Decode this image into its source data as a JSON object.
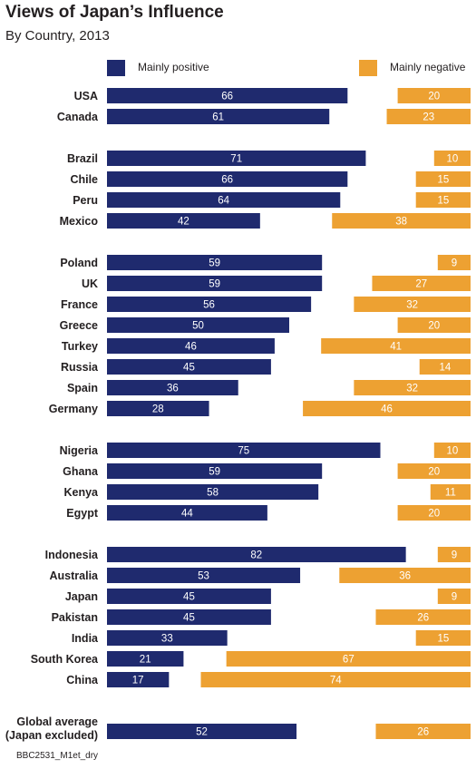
{
  "title": "Views of Japan’s Influence",
  "subtitle": "By Country, 2013",
  "legend": {
    "positive_label": "Mainly positive",
    "negative_label": "Mainly negative"
  },
  "colors": {
    "positive": "#1f2a6e",
    "negative": "#eda132",
    "text_on_bar": "#ffffff"
  },
  "footer": "BBC2531_M1et_dry",
  "chart_data": {
    "type": "bar",
    "title": "Views of Japan’s Influence",
    "subtitle": "By Country, 2013",
    "orientation": "horizontal",
    "categories": [
      "USA",
      "Canada",
      "Brazil",
      "Chile",
      "Peru",
      "Mexico",
      "Poland",
      "UK",
      "France",
      "Greece",
      "Turkey",
      "Russia",
      "Spain",
      "Germany",
      "Nigeria",
      "Ghana",
      "Kenya",
      "Egypt",
      "Indonesia",
      "Australia",
      "Japan",
      "Pakistan",
      "India",
      "South Korea",
      "China",
      "Global average (Japan excluded)"
    ],
    "category_lines": [
      [
        "USA"
      ],
      [
        "Canada"
      ],
      [
        "Brazil"
      ],
      [
        "Chile"
      ],
      [
        "Peru"
      ],
      [
        "Mexico"
      ],
      [
        "Poland"
      ],
      [
        "UK"
      ],
      [
        "France"
      ],
      [
        "Greece"
      ],
      [
        "Turkey"
      ],
      [
        "Russia"
      ],
      [
        "Spain"
      ],
      [
        "Germany"
      ],
      [
        "Nigeria"
      ],
      [
        "Ghana"
      ],
      [
        "Kenya"
      ],
      [
        "Egypt"
      ],
      [
        "Indonesia"
      ],
      [
        "Australia"
      ],
      [
        "Japan"
      ],
      [
        "Pakistan"
      ],
      [
        "India"
      ],
      [
        "South Korea"
      ],
      [
        "China"
      ],
      [
        "Global average",
        "(Japan excluded)"
      ]
    ],
    "groups": [
      [
        0,
        1
      ],
      [
        2,
        3,
        4,
        5
      ],
      [
        6,
        7,
        8,
        9,
        10,
        11,
        12,
        13
      ],
      [
        14,
        15,
        16,
        17
      ],
      [
        18,
        19,
        20,
        21,
        22,
        23,
        24
      ],
      [
        25
      ]
    ],
    "series": [
      {
        "name": "Mainly positive",
        "values": [
          66,
          61,
          71,
          66,
          64,
          42,
          59,
          59,
          56,
          50,
          46,
          45,
          36,
          28,
          75,
          59,
          58,
          44,
          82,
          53,
          45,
          45,
          33,
          21,
          17,
          52
        ]
      },
      {
        "name": "Mainly negative",
        "values": [
          20,
          23,
          10,
          15,
          15,
          38,
          9,
          27,
          32,
          20,
          41,
          14,
          32,
          46,
          10,
          20,
          11,
          20,
          9,
          36,
          9,
          26,
          15,
          67,
          74,
          26
        ]
      }
    ],
    "positive_axis": "left-anchored",
    "negative_axis": "right-anchored",
    "legend_position": "top",
    "grid": false
  }
}
